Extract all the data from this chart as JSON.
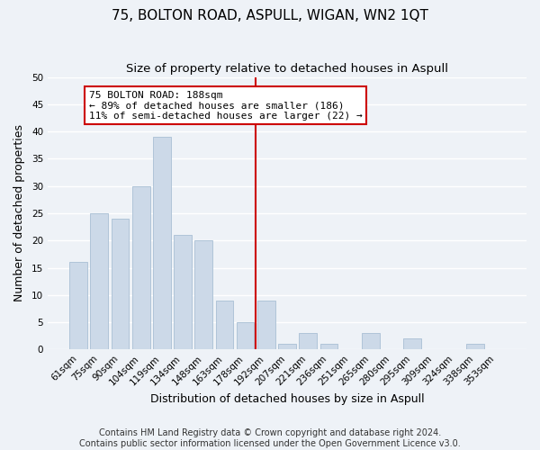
{
  "title": "75, BOLTON ROAD, ASPULL, WIGAN, WN2 1QT",
  "subtitle": "Size of property relative to detached houses in Aspull",
  "xlabel": "Distribution of detached houses by size in Aspull",
  "ylabel": "Number of detached properties",
  "bar_color": "#ccd9e8",
  "bar_edge_color": "#b0c4d8",
  "categories": [
    "61sqm",
    "75sqm",
    "90sqm",
    "104sqm",
    "119sqm",
    "134sqm",
    "148sqm",
    "163sqm",
    "178sqm",
    "192sqm",
    "207sqm",
    "221sqm",
    "236sqm",
    "251sqm",
    "265sqm",
    "280sqm",
    "295sqm",
    "309sqm",
    "324sqm",
    "338sqm",
    "353sqm"
  ],
  "values": [
    16,
    25,
    24,
    30,
    39,
    21,
    20,
    9,
    5,
    9,
    1,
    3,
    1,
    0,
    3,
    0,
    2,
    0,
    0,
    1,
    0
  ],
  "ylim": [
    0,
    50
  ],
  "yticks": [
    0,
    5,
    10,
    15,
    20,
    25,
    30,
    35,
    40,
    45,
    50
  ],
  "vline_index": 9,
  "vline_color": "#cc0000",
  "annotation_title": "75 BOLTON ROAD: 188sqm",
  "annotation_line1": "← 89% of detached houses are smaller (186)",
  "annotation_line2": "11% of semi-detached houses are larger (22) →",
  "annotation_box_color": "#ffffff",
  "annotation_box_edge": "#cc0000",
  "footer1": "Contains HM Land Registry data © Crown copyright and database right 2024.",
  "footer2": "Contains public sector information licensed under the Open Government Licence v3.0.",
  "background_color": "#eef2f7",
  "grid_color": "#ffffff",
  "title_fontsize": 11,
  "subtitle_fontsize": 9.5,
  "axis_label_fontsize": 9,
  "tick_fontsize": 7.5,
  "annotation_fontsize": 8,
  "footer_fontsize": 7
}
